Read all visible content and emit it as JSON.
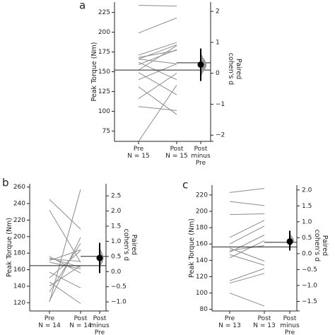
{
  "chart_data": [
    {
      "panel": "a",
      "type": "line",
      "ylabel": "Peak Torque (Nm)",
      "ylim": [
        62,
        238
      ],
      "yticks": [
        75,
        100,
        125,
        150,
        175,
        200,
        225
      ],
      "categories": [
        "Pre\nN = 15",
        "Post\nN = 15"
      ],
      "pairs": [
        [
          234,
          233
        ],
        [
          199,
          218
        ],
        [
          171,
          187
        ],
        [
          166,
          184
        ],
        [
          168,
          177
        ],
        [
          166,
          160
        ],
        [
          162,
          140
        ],
        [
          159,
          178
        ],
        [
          152,
          183
        ],
        [
          149,
          121
        ],
        [
          140,
          160
        ],
        [
          131,
          96
        ],
        [
          116,
          148
        ],
        [
          106,
          101
        ],
        [
          62,
          133
        ]
      ],
      "effect": {
        "xlabel": "Post\nminus\nPre",
        "ylabel": "Paired\ncohen's d",
        "ylim": [
          -2.2,
          2.3
        ],
        "yticks": [
          -2,
          -1,
          0,
          1,
          2
        ],
        "yticklabels": [
          "−2",
          "−1",
          "0",
          "1",
          "2"
        ],
        "mean": 0.28,
        "ci": [
          -0.25,
          0.8
        ],
        "dist_min": -0.3,
        "dist_max": 0.85
      }
    },
    {
      "panel": "b",
      "type": "line",
      "ylabel": "Peak Torque (Nm)",
      "ylim": [
        110,
        264
      ],
      "yticks": [
        120,
        140,
        160,
        180,
        200,
        220,
        240,
        260
      ],
      "categories": [
        "Pre\nN = 14",
        "Post\nN = 14"
      ],
      "pairs": [
        [
          245,
          209
        ],
        [
          232,
          169
        ],
        [
          176,
          156
        ],
        [
          174,
          163
        ],
        [
          173,
          170
        ],
        [
          171,
          184
        ],
        [
          169,
          161
        ],
        [
          157,
          138
        ],
        [
          150,
          183
        ],
        [
          145,
          119
        ],
        [
          140,
          165
        ],
        [
          133,
          192
        ],
        [
          122,
          199
        ],
        [
          121,
          257
        ]
      ],
      "effect": {
        "xlabel": "Post\nminus\nPre",
        "ylabel": "Paired\ncohen's d",
        "ylim": [
          -1.3,
          2.9
        ],
        "yticks": [
          -1.0,
          -0.5,
          0.0,
          0.5,
          1.0,
          1.5,
          2.0,
          2.5
        ],
        "yticklabels": [
          "−1.0",
          "−0.5",
          "0.0",
          "0.5",
          "1.0",
          "1.5",
          "2.0",
          "2.5"
        ],
        "mean": 0.45,
        "ci": [
          -0.05,
          0.95
        ],
        "dist_min": -0.1,
        "dist_max": 1.0
      }
    },
    {
      "panel": "c",
      "type": "line",
      "ylabel": "Peak Torque (Nm)",
      "ylim": [
        78,
        232
      ],
      "yticks": [
        80,
        100,
        120,
        140,
        160,
        180,
        200,
        220
      ],
      "categories": [
        "Pre\nN = 13",
        "Post\nN = 13"
      ],
      "pairs": [
        [
          223,
          228
        ],
        [
          212,
          207
        ],
        [
          196,
          197
        ],
        [
          168,
          189
        ],
        [
          160,
          182
        ],
        [
          155,
          139
        ],
        [
          152,
          158
        ],
        [
          150,
          171
        ],
        [
          147,
          134
        ],
        [
          143,
          164
        ],
        [
          115,
          130
        ],
        [
          112,
          124
        ],
        [
          100,
          84
        ]
      ],
      "effect": {
        "xlabel": "Post\nminus\nPre",
        "ylabel": "Paired\ncohen's d",
        "ylim": [
          -1.8,
          2.15
        ],
        "yticks": [
          -1.5,
          -1.0,
          -0.5,
          0.0,
          0.5,
          1.0,
          1.5,
          2.0
        ],
        "yticklabels": [
          "−1.5",
          "−1.0",
          "−0.5",
          "0.0",
          "0.5",
          "1.0",
          "1.5",
          "2.0"
        ],
        "mean": 0.38,
        "ci": [
          0.1,
          0.72
        ],
        "dist_min": 0.08,
        "dist_max": 0.75
      }
    }
  ]
}
